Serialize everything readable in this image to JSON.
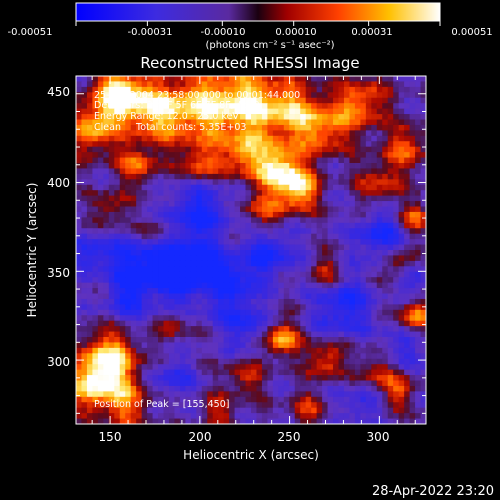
{
  "colorbar": {
    "tick_labels": [
      "-0.00051",
      "-0.00031",
      "-0.00010",
      "0.00010",
      "0.00031",
      "0.00051"
    ],
    "units": "(photons cm⁻² s⁻¹ asec⁻²)"
  },
  "title": "Reconstructed RHESSI Image",
  "annotations": {
    "time_range": "25-Feb-2004 23:58:00.000 to 00:01:44.000",
    "detectors": "Detectors: 3F 4F 5F 6F 7F 8F, Att 0",
    "energy_range": "Energy Range: 12.0 - 25.0 keV",
    "algorithm": "Clean     Total counts: 5.35E+03",
    "peak": "Position of Peak = [155,450]"
  },
  "footer_timestamp": "28-Apr-2022 23:20",
  "chart_data": {
    "type": "heatmap",
    "title": "Reconstructed RHESSI Image",
    "xlabel": "Heliocentric X (arcsec)",
    "ylabel": "Heliocentric Y (arcsec)",
    "xlim": [
      131,
      326
    ],
    "ylim": [
      264,
      460
    ],
    "x_ticks": [
      150,
      200,
      250,
      300
    ],
    "x_tick_labels": [
      "150",
      "200",
      "250",
      "300"
    ],
    "y_ticks": [
      300,
      350,
      400,
      450
    ],
    "y_tick_labels": [
      "300",
      "350",
      "400",
      "450"
    ],
    "value_range": [
      -0.00051,
      0.00051
    ],
    "peak": [
      155,
      450
    ],
    "colors": {
      "negative_low": "#1a1aff",
      "negative_high": "#7a3fd0",
      "zero": "#4a1a6a",
      "positive_low": "#b01010",
      "positive_mid": "#ff6a00",
      "positive_high": "#ffffff"
    }
  }
}
